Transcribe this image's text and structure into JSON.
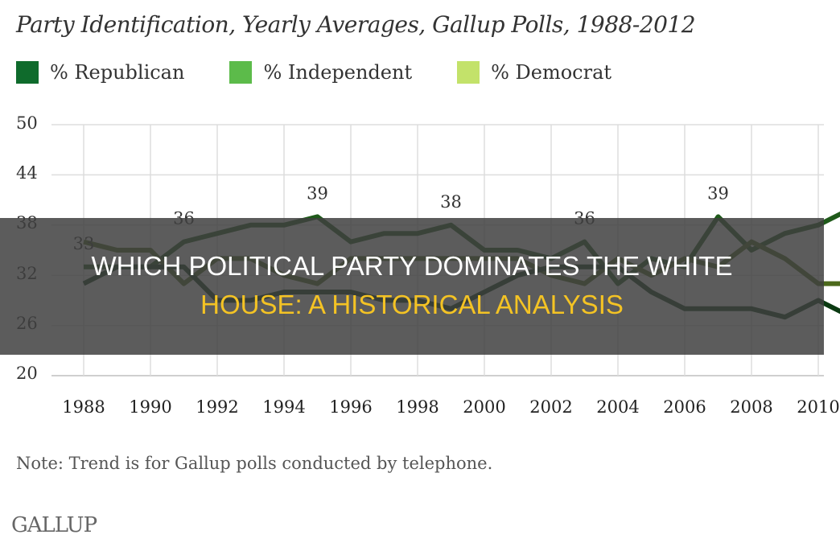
{
  "chart": {
    "title": "Party Identification, Yearly Averages, Gallup Polls, 1988-2012",
    "legend": [
      {
        "label": "% Republican",
        "color": "#0f6b2c"
      },
      {
        "label": "% Independent",
        "color": "#5cbb4a"
      },
      {
        "label": "% Democrat",
        "color": "#c3e26a"
      }
    ],
    "y_ticks": [
      "50",
      "44",
      "38",
      "32",
      "26",
      "20"
    ],
    "x_ticks": [
      "1988",
      "1990",
      "1992",
      "1994",
      "1996",
      "1998",
      "2000",
      "2002",
      "2004",
      "2006",
      "2008",
      "2010"
    ],
    "note": "Note: Trend is for Gallup polls conducted by telephone.",
    "logo": "GALLUP"
  },
  "banner": {
    "line1": "WHICH POLITICAL PARTY DOMINATES THE WHITE",
    "line2": "HOUSE: A HISTORICAL ANALYSIS"
  },
  "chart_data": {
    "type": "line",
    "title": "Party Identification, Yearly Averages, Gallup Polls, 1988-2012",
    "xlabel": "",
    "ylabel": "%",
    "ylim": [
      20,
      50
    ],
    "y_ticks": [
      20,
      26,
      32,
      38,
      44,
      50
    ],
    "grid": true,
    "legend_position": "top",
    "values_are_approximate": true,
    "values_note": "Series values estimated by eye from pixel positions (about +/-1 point); only the six peak labels are printed in the chart. Series-to-line assignment is inferred from line brightness matched to legend swatches, because the overlay banner obscures the line colors.",
    "x": [
      1988,
      1989,
      1990,
      1991,
      1992,
      1993,
      1994,
      1995,
      1996,
      1997,
      1998,
      1999,
      2000,
      2001,
      2002,
      2003,
      2004,
      2005,
      2006,
      2007,
      2008,
      2009,
      2010,
      2011
    ],
    "annotations": [
      {
        "x": 1988,
        "y": 33,
        "label": "33"
      },
      {
        "x": 1991,
        "y": 36,
        "label": "36"
      },
      {
        "x": 1995,
        "y": 39,
        "label": "39"
      },
      {
        "x": 1999,
        "y": 38,
        "label": "38"
      },
      {
        "x": 2003,
        "y": 36,
        "label": "36"
      },
      {
        "x": 2007,
        "y": 39,
        "label": "39"
      }
    ],
    "series": [
      {
        "name": "% Independent",
        "color": "#1f5a1a",
        "values": [
          33,
          33,
          33,
          36,
          37,
          38,
          38,
          39,
          36,
          37,
          37,
          38,
          35,
          35,
          34,
          36,
          31,
          34,
          33,
          39,
          35,
          37,
          38,
          40
        ]
      },
      {
        "name": "% Democrat",
        "color": "#4d6a1c",
        "values": [
          36,
          35,
          35,
          31,
          34,
          34,
          32,
          31,
          34,
          34,
          34,
          34,
          34,
          34,
          32,
          31,
          34,
          32,
          34,
          33,
          36,
          34,
          31,
          31
        ]
      },
      {
        "name": "% Republican",
        "color": "#0b3a12",
        "values": [
          31,
          33,
          33,
          33,
          29,
          29,
          30,
          30,
          30,
          29,
          29,
          28,
          30,
          32,
          33,
          33,
          33,
          30,
          28,
          28,
          28,
          27,
          29,
          27
        ]
      }
    ],
    "x_axis_visible_ticks": [
      "1988",
      "1990",
      "1992",
      "1994",
      "1996",
      "1998",
      "2000",
      "2002",
      "2004",
      "2006",
      "2008",
      "2010"
    ]
  }
}
